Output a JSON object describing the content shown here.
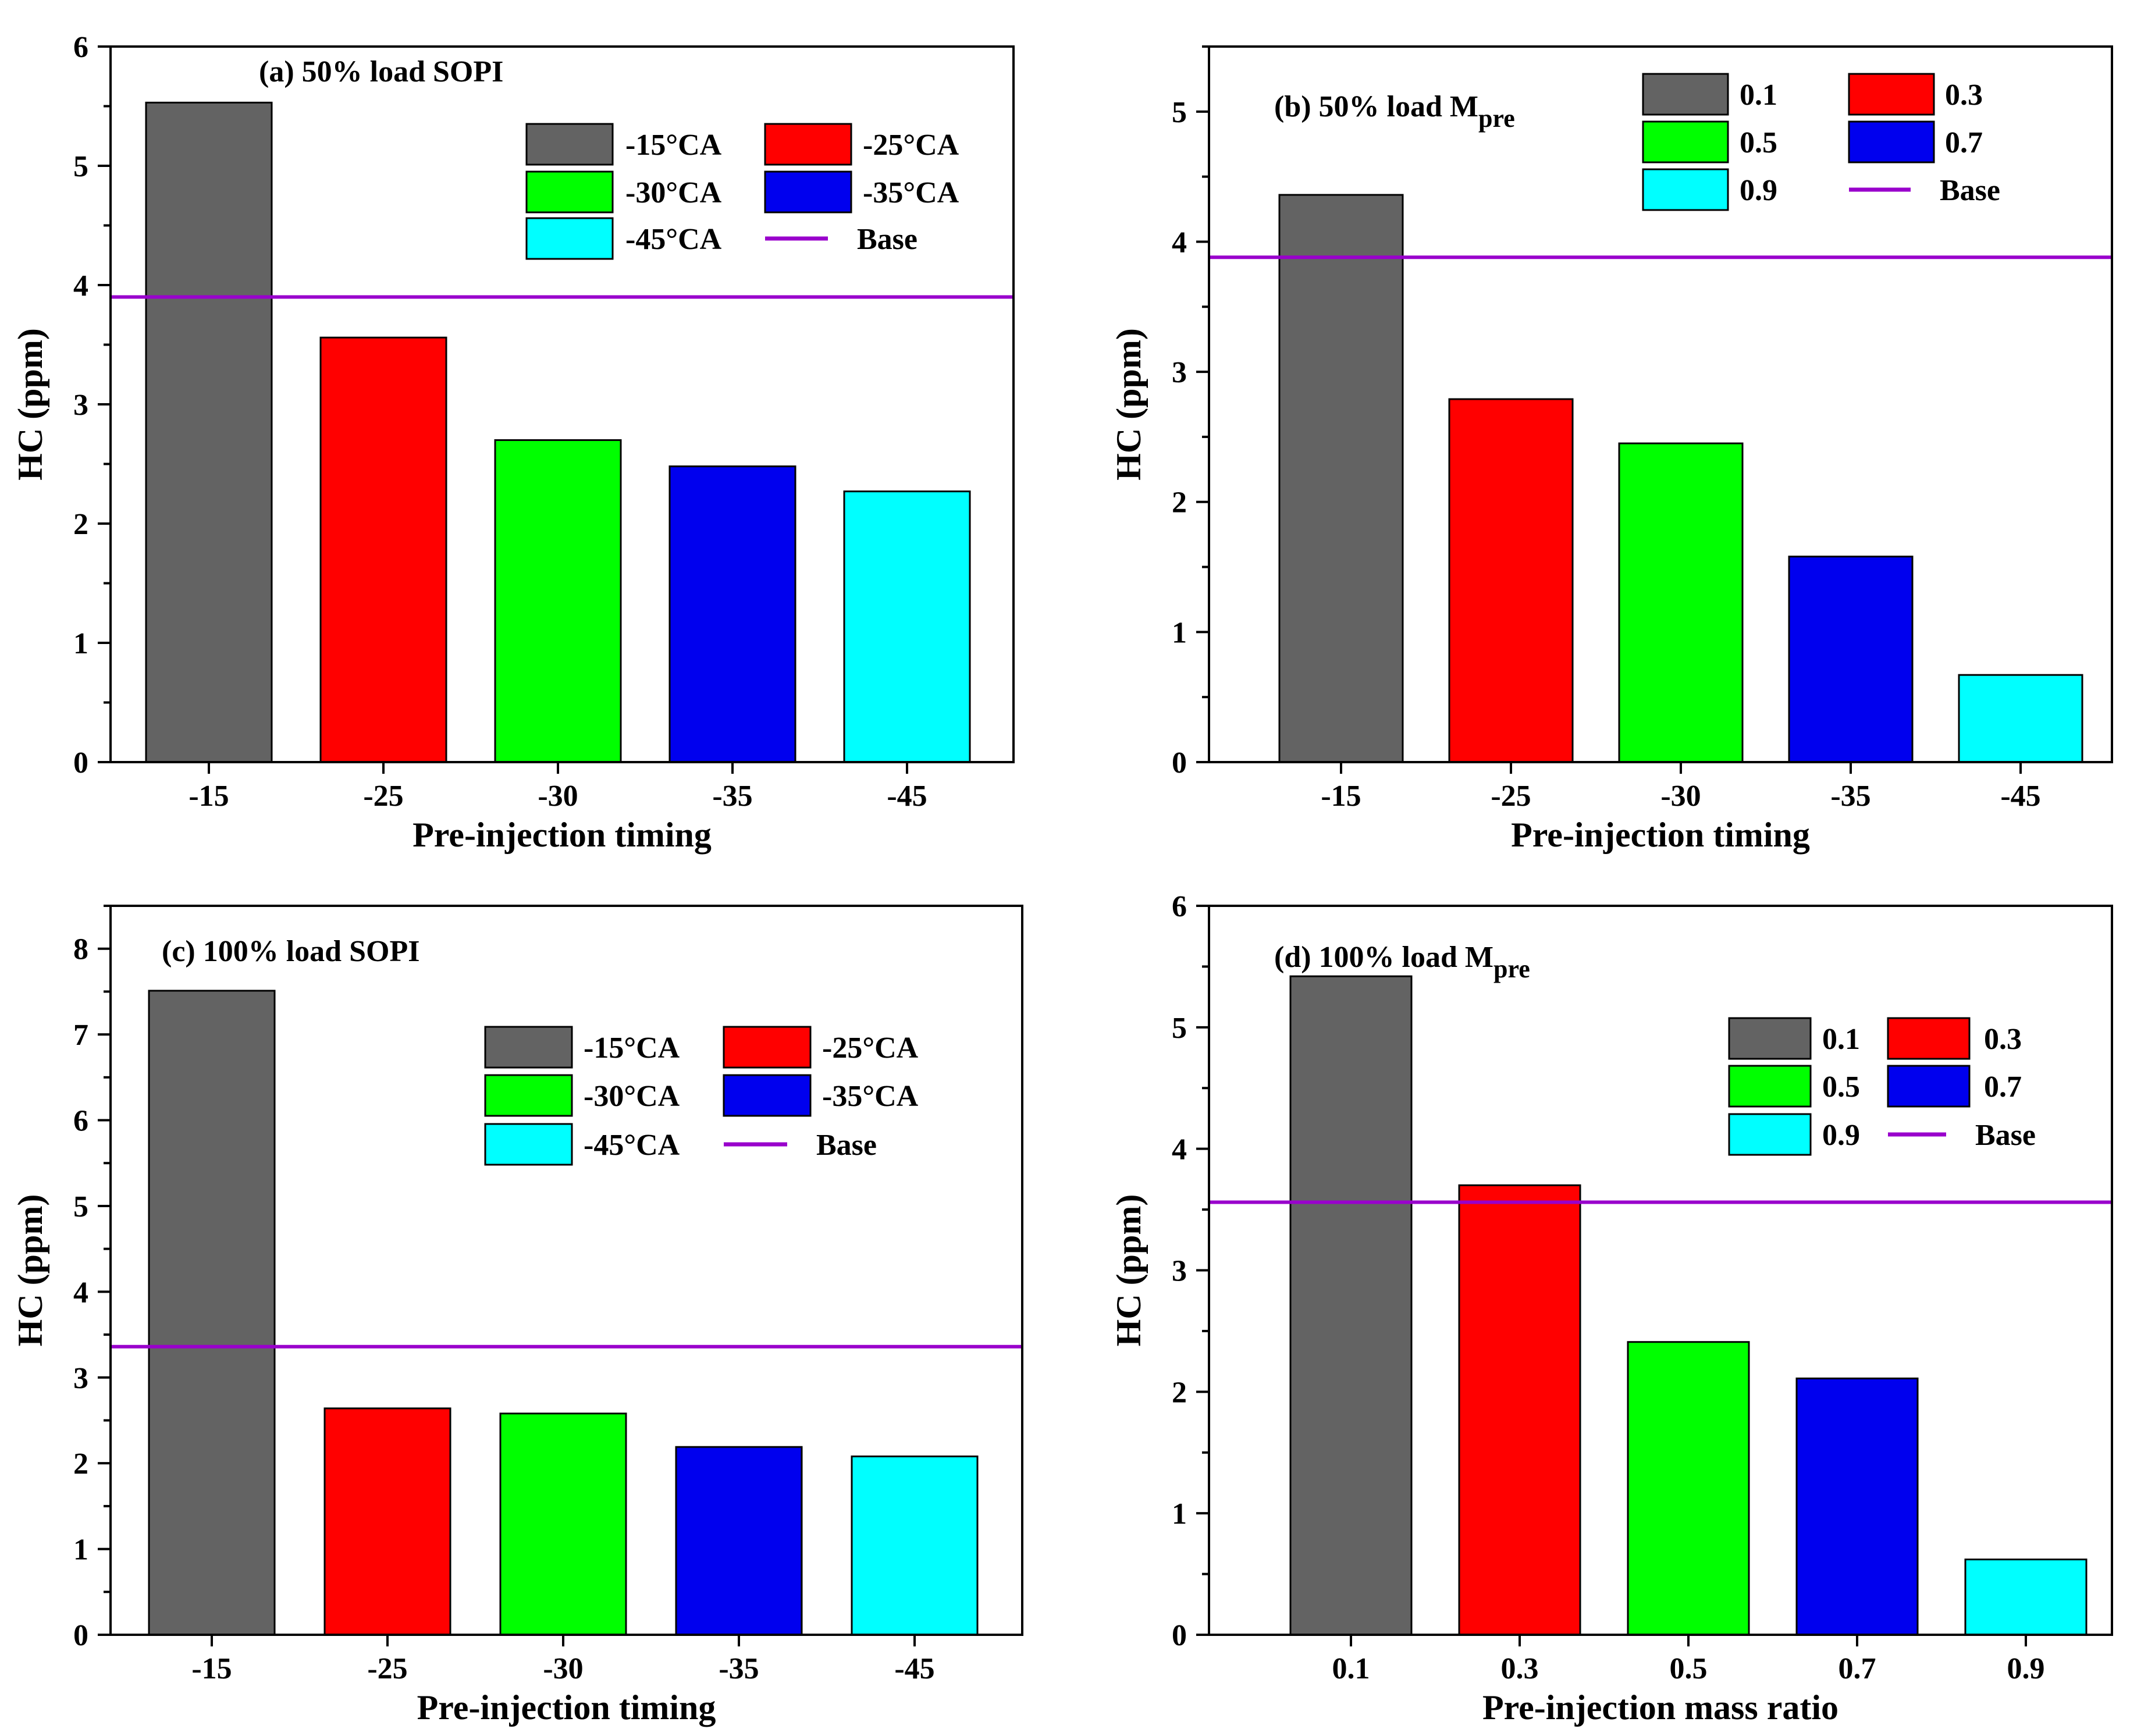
{
  "colors": {
    "dark_gray": "#636363",
    "red": "#ff0000",
    "green": "#00ff00",
    "blue": "#0000ee",
    "cyan": "#00ffff",
    "base_line": "#9900cc"
  },
  "chart_data": [
    {
      "type": "bar",
      "title": "(a) 50% load SOPI",
      "categories": [
        "-15",
        "-25",
        "-30",
        "-35",
        "-45"
      ],
      "values": [
        5.53,
        3.56,
        2.7,
        2.48,
        2.27
      ],
      "bar_colors": [
        "#636363",
        "#ff0000",
        "#00ff00",
        "#0000ee",
        "#00ffff"
      ],
      "legend_labels": [
        "-15°CA",
        "-25°CA",
        "-30°CA",
        "-35°CA",
        "-45°CA"
      ],
      "base_label": "Base",
      "base_value": 3.9,
      "xlabel": "Pre-injection timing",
      "ylabel": "HC (ppm)",
      "ylim": [
        0,
        6
      ],
      "yticks": [
        0,
        1,
        2,
        3,
        4,
        5,
        6
      ],
      "ytick_labels": [
        "0",
        "1",
        "2",
        "3",
        "4",
        "5",
        "6"
      ],
      "minor_step": 0.5
    },
    {
      "type": "bar",
      "title": "(b) 50% load M",
      "title_sub": "pre",
      "categories": [
        "-15",
        "-25",
        "-30",
        "-35",
        "-45"
      ],
      "values": [
        4.36,
        2.79,
        2.45,
        1.58,
        0.67
      ],
      "bar_colors": [
        "#636363",
        "#ff0000",
        "#00ff00",
        "#0000ee",
        "#00ffff"
      ],
      "legend_labels": [
        "0.1",
        "0.3",
        "0.5",
        "0.7",
        "0.9"
      ],
      "base_label": "Base",
      "base_value": 3.88,
      "xlabel": "Pre-injection timing",
      "ylabel": "HC (ppm)",
      "ylim": [
        0,
        5.5
      ],
      "yticks": [
        0,
        1,
        2,
        3,
        4,
        5
      ],
      "ytick_labels": [
        "0",
        "1",
        "2",
        "3",
        "4",
        "5"
      ],
      "minor_step": 0.5
    },
    {
      "type": "bar",
      "title": "(c) 100% load SOPI",
      "categories": [
        "-15",
        "-25",
        "-30",
        "-35",
        "-45"
      ],
      "values": [
        7.51,
        2.64,
        2.58,
        2.19,
        2.08
      ],
      "bar_colors": [
        "#636363",
        "#ff0000",
        "#00ff00",
        "#0000ee",
        "#00ffff"
      ],
      "legend_labels": [
        "-15°CA",
        "-25°CA",
        "-30°CA",
        "-35°CA",
        "-45°CA"
      ],
      "base_label": "Base",
      "base_value": 3.36,
      "xlabel": "Pre-injection timing",
      "ylabel": "HC (ppm)",
      "ylim": [
        0,
        8.5
      ],
      "yticks": [
        0,
        1,
        2,
        3,
        4,
        5,
        6,
        7,
        8
      ],
      "ytick_labels": [
        "0",
        "1",
        "2",
        "3",
        "4",
        "5",
        "6",
        "7",
        "8"
      ],
      "minor_step": 0.5
    },
    {
      "type": "bar",
      "title": "(d) 100% load M",
      "title_sub": "pre",
      "categories": [
        "0.1",
        "0.3",
        "0.5",
        "0.7",
        "0.9"
      ],
      "values": [
        5.42,
        3.7,
        2.41,
        2.11,
        0.62
      ],
      "bar_colors": [
        "#636363",
        "#ff0000",
        "#00ff00",
        "#0000ee",
        "#00ffff"
      ],
      "legend_labels": [
        "0.1",
        "0.3",
        "0.5",
        "0.7",
        "0.9"
      ],
      "base_label": "Base",
      "base_value": 3.56,
      "xlabel": "Pre-injection mass ratio",
      "ylabel": "HC (ppm)",
      "ylim": [
        0,
        6
      ],
      "yticks": [
        0,
        1,
        2,
        3,
        4,
        5,
        6
      ],
      "ytick_labels": [
        "0",
        "1",
        "2",
        "3",
        "4",
        "5",
        "6"
      ],
      "minor_step": 0.5
    }
  ]
}
